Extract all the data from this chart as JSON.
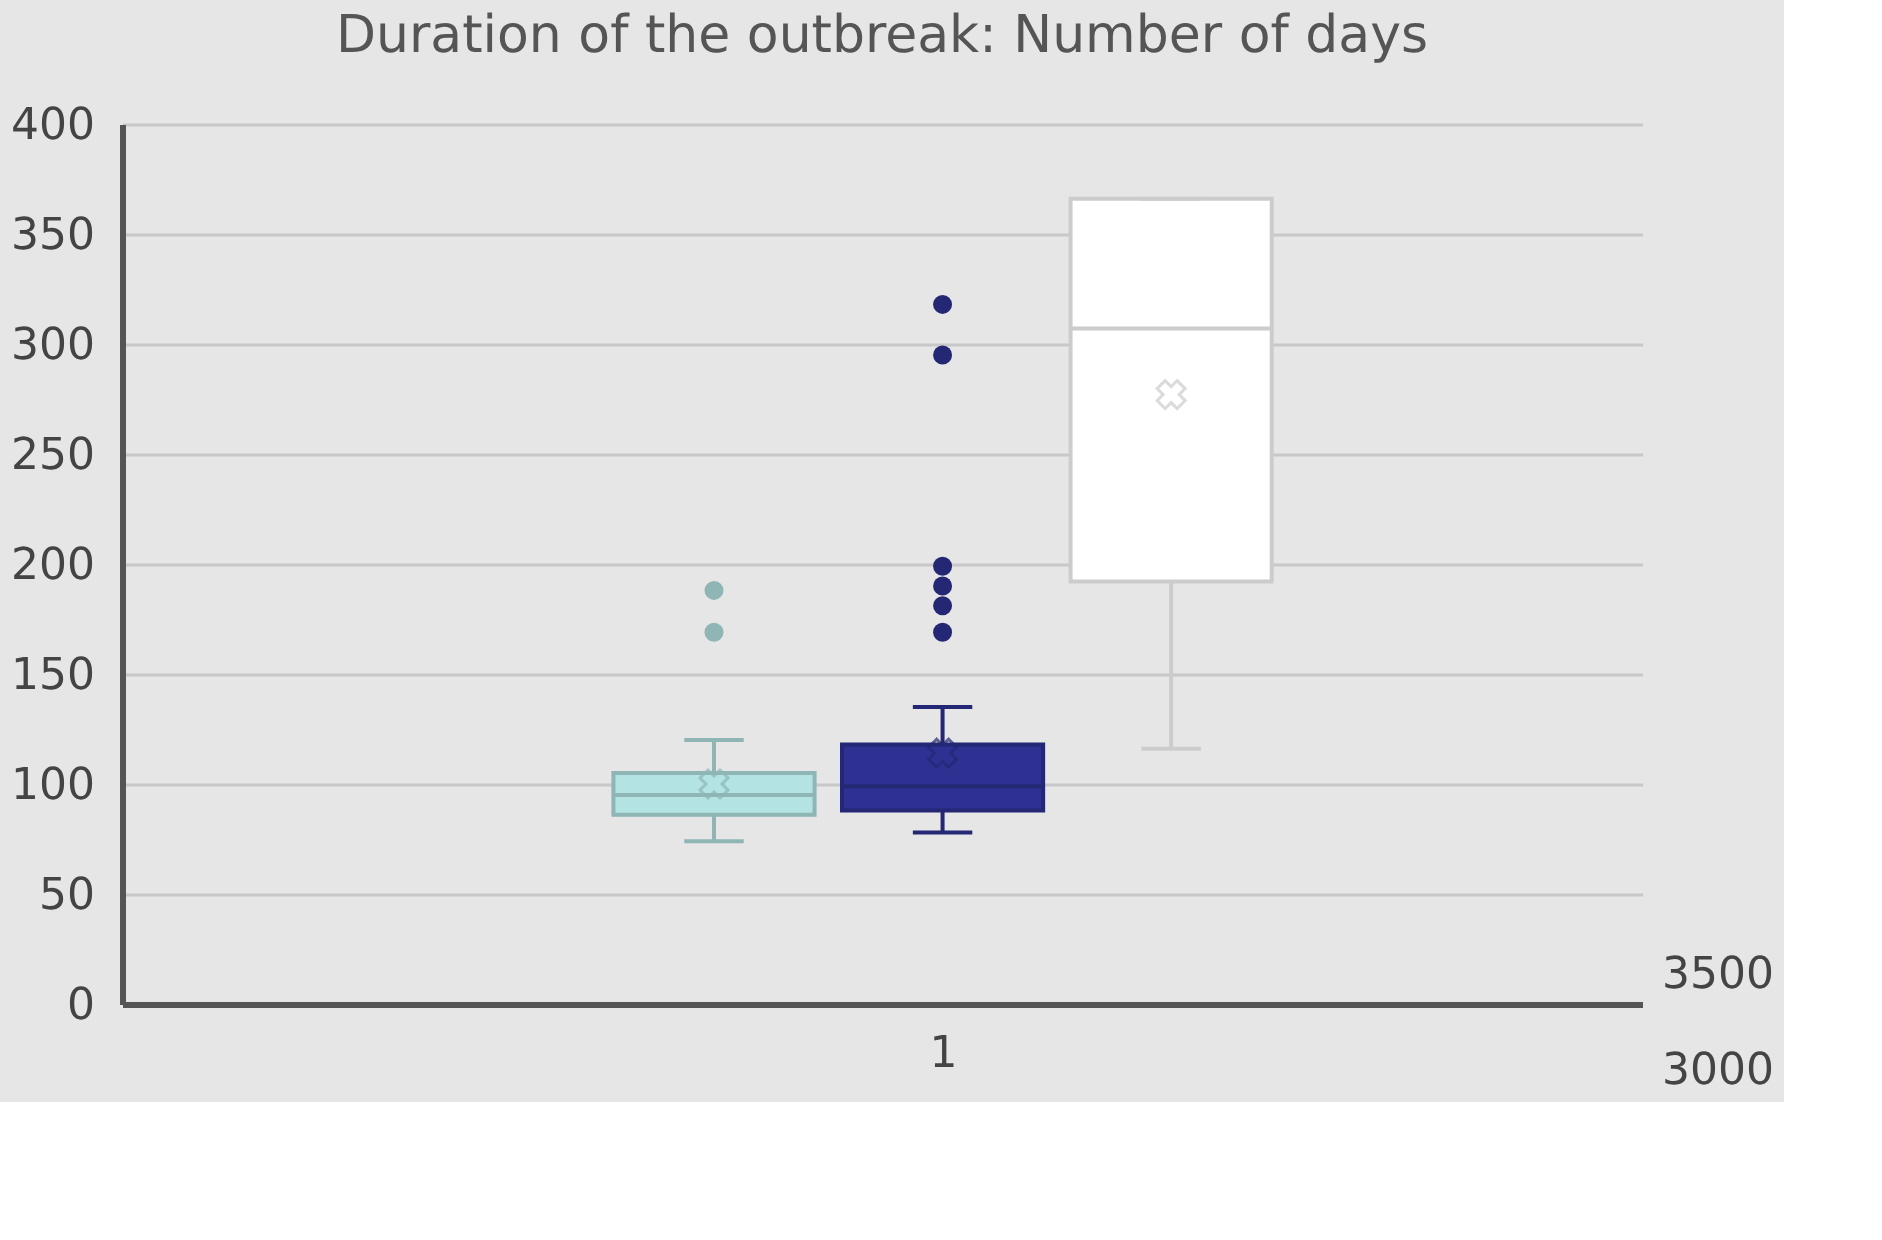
{
  "chart_data": {
    "type": "box",
    "title": "Duration of the outbreak: Number of days",
    "categories": [
      "1"
    ],
    "series": [
      {
        "color": "#b3e3e3",
        "boxes": [
          {
            "low": 74,
            "q1": 86,
            "median": 95,
            "q3": 105,
            "high": 120,
            "mean": 100,
            "outliers": [
              169,
              188
            ]
          }
        ]
      },
      {
        "color": "#2e3192",
        "boxes": [
          {
            "low": 78,
            "q1": 88,
            "median": 99,
            "q3": 118,
            "high": 135,
            "mean": 114,
            "outliers": [
              169,
              181,
              190,
              199,
              295,
              318
            ]
          }
        ]
      },
      {
        "color": "#ffffff",
        "boxes": [
          {
            "low": 116,
            "q1": 192,
            "median": 307,
            "q3": 366,
            "high": 366,
            "mean": 277
          }
        ]
      }
    ],
    "ylim": [
      0,
      400
    ],
    "yticks": [
      0,
      50,
      100,
      150,
      200,
      250,
      300,
      350,
      400
    ],
    "grid": "y",
    "marker": "circle",
    "annotations": [
      "3500",
      "3000"
    ]
  }
}
